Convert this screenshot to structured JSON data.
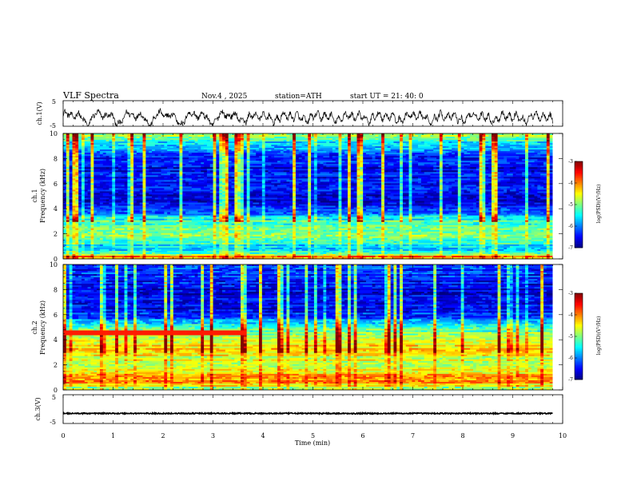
{
  "header": {
    "title": "VLF  Spectra",
    "date": "Nov.4  , 2025",
    "station": "station=ATH",
    "start_ut": "start  UT  =   21: 40: 0"
  },
  "chart_data": [
    {
      "type": "line",
      "name": "ch1-waveform",
      "ylabel": "ch.1(V)",
      "ylim": [
        -5,
        5
      ],
      "yticks": [
        "5",
        "-5"
      ],
      "xlim": [
        0,
        10
      ],
      "data_end_min": 9.8,
      "description_values": {
        "mean": -1.5,
        "amplitude": 3.5
      }
    },
    {
      "type": "heatmap",
      "name": "ch1-spectrogram",
      "ylabel": "ch.1",
      "ylabel2": "Frequency  (kHz)",
      "ylim": [
        0,
        10
      ],
      "yticks": [
        "0",
        "2",
        "4",
        "6",
        "8",
        "10"
      ],
      "xlim": [
        0,
        9.8
      ],
      "colorbar": {
        "label": "log(PSD)(V²/Hz)",
        "range": [
          -7,
          -3
        ],
        "ticks": [
          "-3",
          "-4",
          "-5",
          "-6",
          "-7"
        ]
      },
      "band_profile_khz_log": [
        [
          0.2,
          -4.0
        ],
        [
          0.5,
          -5.5
        ],
        [
          1.0,
          -5.6
        ],
        [
          1.5,
          -5.2
        ],
        [
          2.0,
          -4.8
        ],
        [
          2.5,
          -5.3
        ],
        [
          3.0,
          -5.2
        ],
        [
          3.5,
          -5.9
        ],
        [
          4.0,
          -6.3
        ],
        [
          4.5,
          -6.6
        ],
        [
          5.0,
          -6.7
        ],
        [
          5.5,
          -6.2
        ],
        [
          6.0,
          -6.5
        ],
        [
          7.0,
          -6.6
        ],
        [
          8.0,
          -6.4
        ],
        [
          9.0,
          -5.8
        ],
        [
          9.7,
          -5.0
        ]
      ]
    },
    {
      "type": "heatmap",
      "name": "ch2-spectrogram",
      "ylabel": "ch.2",
      "ylabel2": "Frequency  (kHz)",
      "ylim": [
        0,
        10
      ],
      "yticks": [
        "0",
        "2",
        "4",
        "6",
        "8",
        "10"
      ],
      "xlim": [
        0,
        9.8
      ],
      "colorbar": {
        "label": "log(PSD)(V²/Hz)",
        "range": [
          -7,
          -3
        ],
        "ticks": [
          "-3",
          "-4",
          "-5",
          "-6",
          "-7"
        ]
      },
      "band_profile_khz_log": [
        [
          0.2,
          -4.8
        ],
        [
          0.6,
          -4.2
        ],
        [
          1.0,
          -4.0
        ],
        [
          1.5,
          -4.6
        ],
        [
          2.0,
          -4.8
        ],
        [
          2.5,
          -4.7
        ],
        [
          3.0,
          -4.5
        ],
        [
          3.5,
          -4.3
        ],
        [
          4.0,
          -4.7
        ],
        [
          4.5,
          -5.0
        ],
        [
          5.0,
          -5.4
        ],
        [
          5.5,
          -5.9
        ],
        [
          6.0,
          -6.3
        ],
        [
          7.0,
          -6.6
        ],
        [
          8.0,
          -6.6
        ],
        [
          9.0,
          -6.5
        ],
        [
          9.7,
          -6.2
        ]
      ]
    },
    {
      "type": "line",
      "name": "ch3-waveform",
      "ylabel": "ch.3(V)",
      "ylim": [
        -5,
        5
      ],
      "yticks": [
        "5",
        "-5"
      ],
      "xlim": [
        0,
        10
      ],
      "data_end_min": 9.8,
      "description_values": {
        "mean": -1.5,
        "amplitude": 0.2
      }
    }
  ],
  "xaxis": {
    "label": "Time  (min)",
    "ticks": [
      "0",
      "1",
      "2",
      "3",
      "4",
      "5",
      "6",
      "7",
      "8",
      "9",
      "10"
    ],
    "range": [
      0,
      10
    ]
  }
}
